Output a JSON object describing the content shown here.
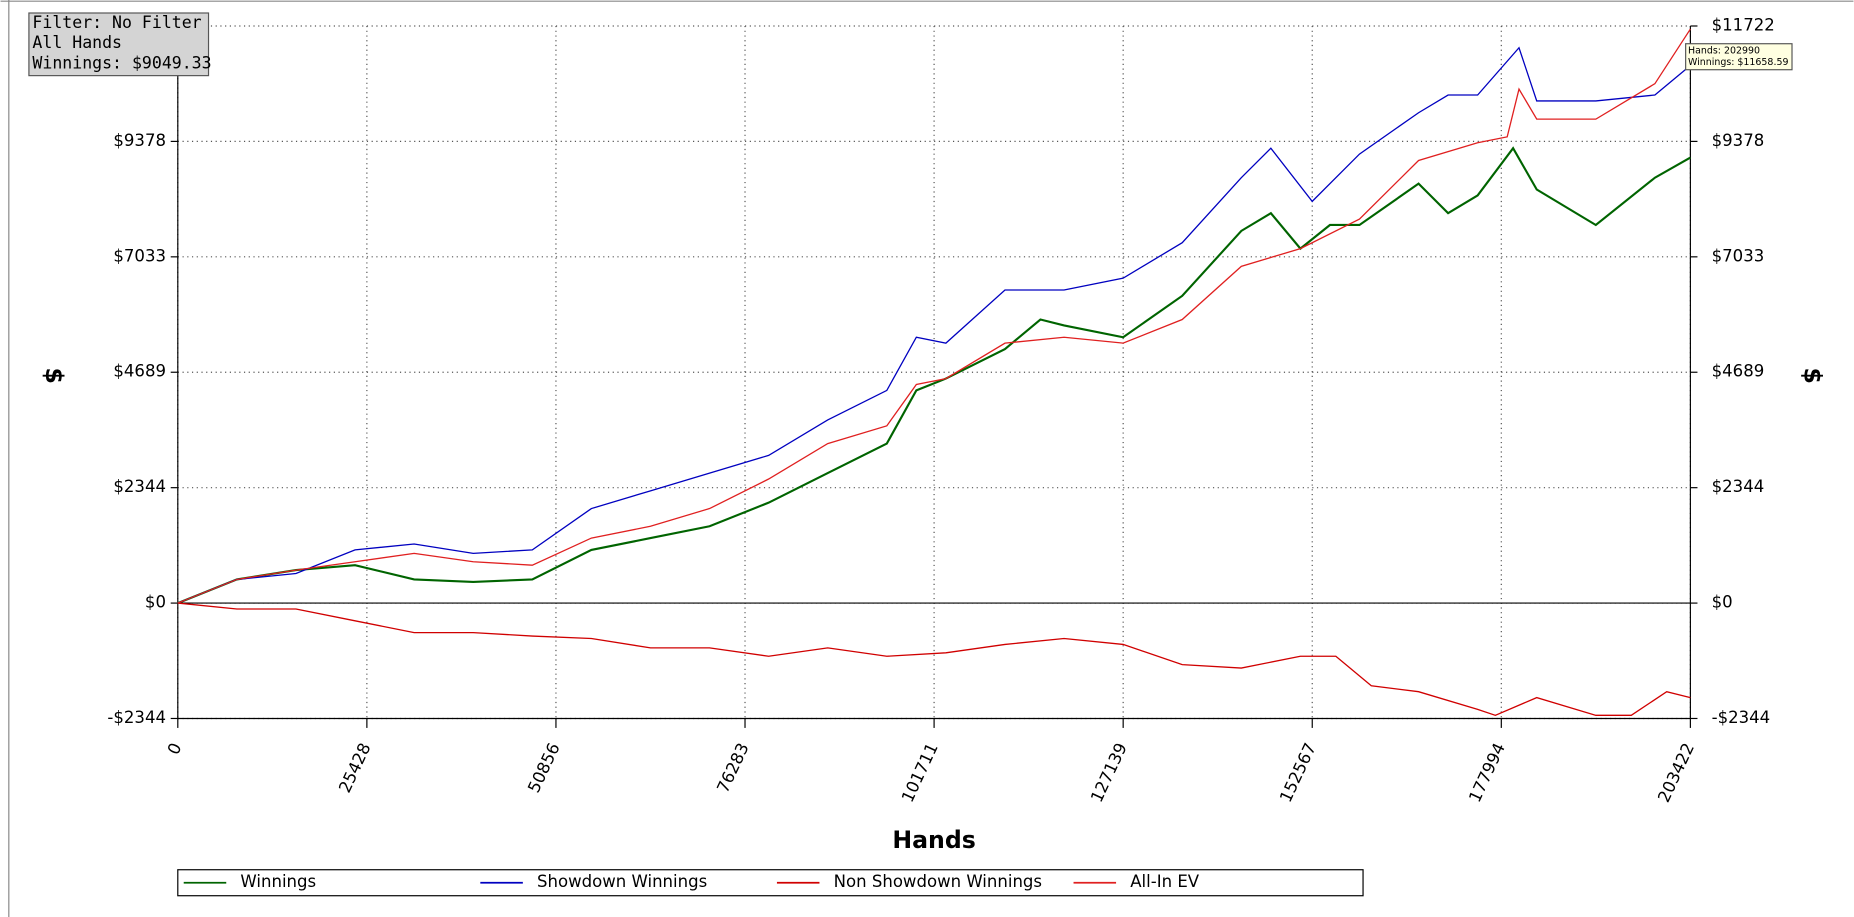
{
  "chart_data": {
    "type": "line",
    "xlabel": "Hands",
    "ylabel": "$",
    "info_box": [
      "Filter: No Filter",
      "All Hands",
      "Winnings: $9049.33"
    ],
    "tooltip": [
      "Hands: 202990",
      "Winnings: $11658.59"
    ],
    "xlim": [
      0,
      203422
    ],
    "xticks": [
      0,
      25428,
      50856,
      76283,
      101711,
      127139,
      152567,
      177994,
      203422
    ],
    "ylim": [
      -2344,
      11722
    ],
    "yticks": [
      {
        "value": -2344,
        "label": "-$2344"
      },
      {
        "value": 0,
        "label": "$0"
      },
      {
        "value": 2344,
        "label": "$2344"
      },
      {
        "value": 4689,
        "label": "$4689"
      },
      {
        "value": 7033,
        "label": "$7033"
      },
      {
        "value": 9378,
        "label": "$9378"
      },
      {
        "value": 11722,
        "label": "$11722"
      }
    ],
    "grid": true,
    "legend": "bottom",
    "series": [
      {
        "name": "Winnings",
        "color": "#006400",
        "x": [
          0,
          7946,
          15892,
          23838,
          31784,
          39730,
          47676,
          55622,
          63568,
          71514,
          79460,
          87406,
          95352,
          99325,
          103298,
          111244,
          116012,
          119190,
          127136,
          135082,
          143028,
          147001,
          150974,
          154947,
          158920,
          166866,
          170839,
          174812,
          179580,
          182758,
          190704,
          198650,
          203422
        ],
        "values": [
          0,
          480,
          670,
          770,
          480,
          430,
          480,
          1080,
          1320,
          1560,
          2040,
          2640,
          3240,
          4320,
          4560,
          5160,
          5760,
          5640,
          5400,
          6240,
          7560,
          7920,
          7200,
          7680,
          7680,
          8520,
          7920,
          8280,
          9240,
          8400,
          7680,
          8640,
          9049
        ]
      },
      {
        "name": "Showdown Winnings",
        "color": "#0000c0",
        "x": [
          0,
          7946,
          15892,
          23838,
          31784,
          39730,
          47676,
          55622,
          63568,
          71514,
          79460,
          87406,
          95352,
          99325,
          103298,
          111244,
          119190,
          127136,
          135082,
          143028,
          147001,
          152563,
          158920,
          166866,
          170839,
          174812,
          180374,
          182758,
          190704,
          198650,
          203422
        ],
        "values": [
          0,
          480,
          600,
          1080,
          1200,
          1010,
          1080,
          1920,
          2280,
          2640,
          3000,
          3720,
          4320,
          5400,
          5280,
          6360,
          6360,
          6600,
          7320,
          8640,
          9240,
          8160,
          9120,
          9960,
          10320,
          10320,
          11280,
          10200,
          10200,
          10320,
          10920
        ]
      },
      {
        "name": "Non Showdown Winnings",
        "color": "#d00000",
        "x": [
          0,
          7946,
          15892,
          23838,
          31784,
          39730,
          47676,
          55622,
          63568,
          71514,
          79460,
          87406,
          95352,
          103298,
          111244,
          119190,
          127136,
          135082,
          143028,
          150974,
          155742,
          160509,
          166866,
          174812,
          177196,
          182758,
          190704,
          195472,
          200239,
          203422
        ],
        "values": [
          0,
          -120,
          -120,
          -360,
          -600,
          -600,
          -670,
          -720,
          -910,
          -910,
          -1080,
          -910,
          -1080,
          -1010,
          -840,
          -720,
          -840,
          -1250,
          -1320,
          -1080,
          -1080,
          -1680,
          -1800,
          -2160,
          -2280,
          -1920,
          -2280,
          -2280,
          -1800,
          -1920
        ]
      },
      {
        "name": "All-In EV",
        "color": "#e02020",
        "x": [
          0,
          7946,
          15892,
          23838,
          31784,
          39730,
          47676,
          55622,
          63568,
          71514,
          79460,
          87406,
          95352,
          99325,
          103298,
          111244,
          119190,
          127136,
          135082,
          143028,
          150974,
          158920,
          166866,
          174812,
          178785,
          180374,
          182758,
          190704,
          198650,
          203422
        ],
        "values": [
          0,
          480,
          670,
          840,
          1010,
          840,
          770,
          1320,
          1560,
          1920,
          2520,
          3240,
          3600,
          4440,
          4560,
          5280,
          5400,
          5280,
          5760,
          6840,
          7200,
          7800,
          8990,
          9350,
          9470,
          10440,
          9830,
          9830,
          10550,
          11660
        ]
      }
    ]
  }
}
